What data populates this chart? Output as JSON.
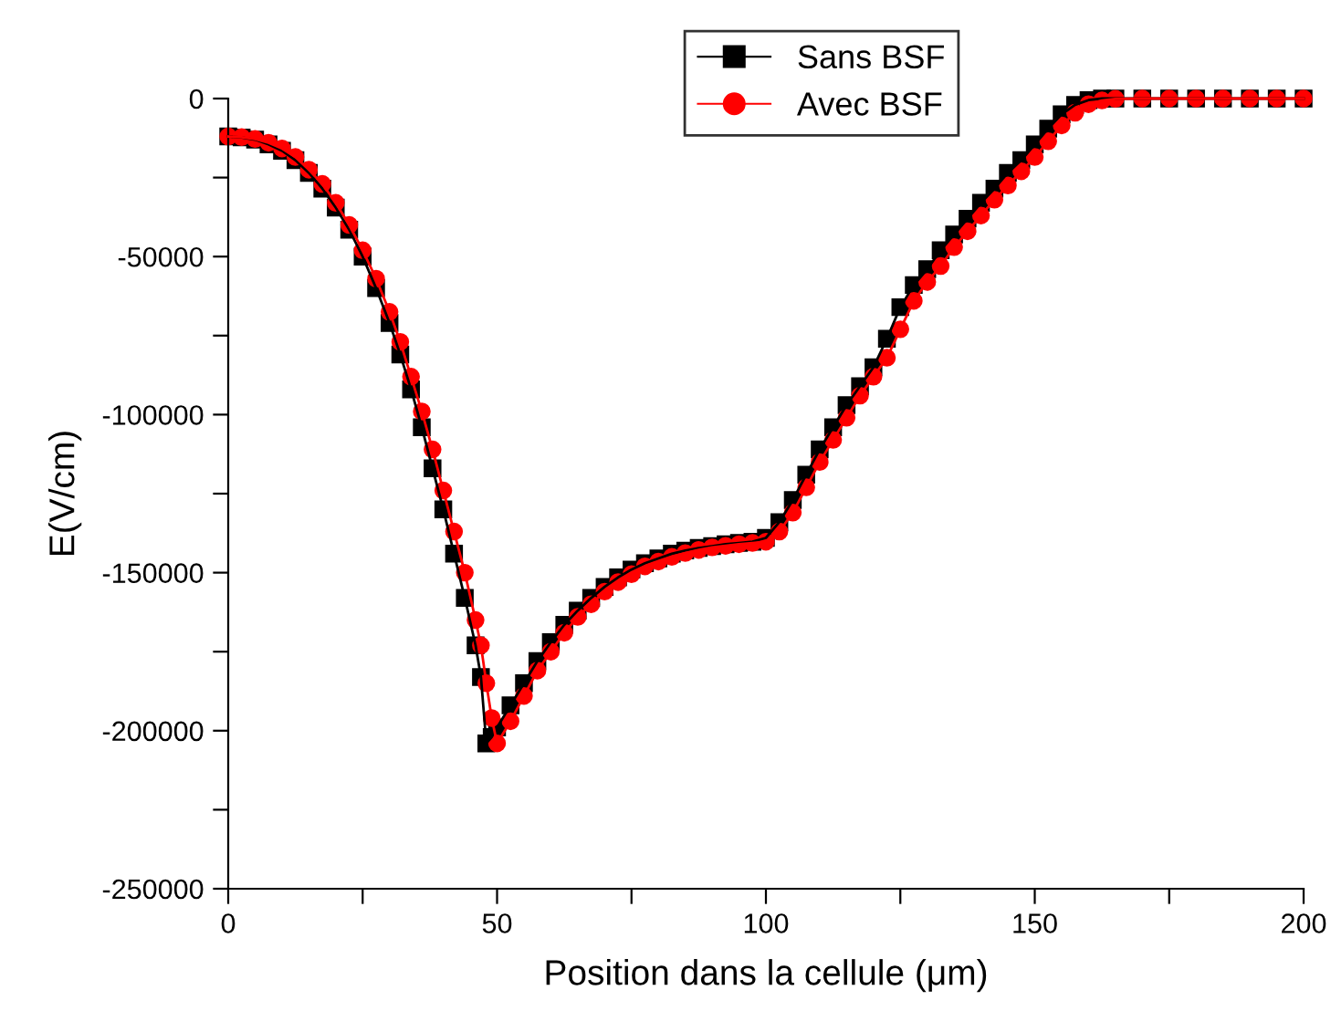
{
  "chart_data": {
    "type": "line",
    "xlabel": "Position dans la cellule (μm)",
    "ylabel": "E(V/cm)",
    "xlim": [
      0,
      200
    ],
    "ylim": [
      -250000,
      0
    ],
    "xticks": [
      0,
      {
        "value": 25,
        "label": null
      },
      50,
      {
        "value": 75,
        "label": null
      },
      100,
      {
        "value": 125,
        "label": null
      },
      150,
      {
        "value": 175,
        "label": null
      },
      200
    ],
    "yticks": [
      -250000,
      {
        "value": -225000,
        "label": null
      },
      -200000,
      {
        "value": -175000,
        "label": null
      },
      -150000,
      {
        "value": -125000,
        "label": null
      },
      -100000,
      {
        "value": -75000,
        "label": null
      },
      -50000,
      {
        "value": -25000,
        "label": null
      },
      0
    ],
    "grid": false,
    "legend": "top",
    "line_style": "solid",
    "series": [
      {
        "name": "Sans BSF",
        "color": "#000000",
        "marker": "square",
        "x": [
          0,
          2.5,
          5,
          7.5,
          10,
          12.5,
          15,
          17.5,
          20,
          22.5,
          25,
          27.5,
          30,
          32,
          34,
          36,
          38,
          40,
          42,
          44,
          46,
          47,
          48,
          49,
          50,
          52.5,
          55,
          57.5,
          60,
          62.5,
          65,
          67.5,
          70,
          72.5,
          75,
          77.5,
          80,
          82.5,
          85,
          87.5,
          90,
          92.5,
          95,
          97.5,
          100,
          102.5,
          105,
          107.5,
          110,
          112.5,
          115,
          117.5,
          120,
          122.5,
          125,
          127.5,
          130,
          132.5,
          135,
          137.5,
          140,
          142.5,
          145,
          147.5,
          150,
          152.5,
          155,
          157.5,
          160,
          162.5,
          165,
          170,
          175,
          180,
          185,
          190,
          195,
          200
        ],
        "values": [
          -12000,
          -12300,
          -13000,
          -14500,
          -16500,
          -19500,
          -23500,
          -28500,
          -34500,
          -41500,
          -50000,
          -60000,
          -71000,
          -81000,
          -92000,
          -104000,
          -117000,
          -130000,
          -144000,
          -158000,
          -173000,
          -183000,
          -204000,
          -202000,
          -199000,
          -192000,
          -185000,
          -178000,
          -172000,
          -166500,
          -162000,
          -158000,
          -154500,
          -151500,
          -149000,
          -147000,
          -145500,
          -144000,
          -143000,
          -142200,
          -141600,
          -141000,
          -140600,
          -140200,
          -139000,
          -134000,
          -127000,
          -119000,
          -111000,
          -104000,
          -97000,
          -91000,
          -85000,
          -76000,
          -66000,
          -59000,
          -54000,
          -48000,
          -43000,
          -38000,
          -33000,
          -28500,
          -23500,
          -19500,
          -14500,
          -9500,
          -5000,
          -2000,
          -500,
          0,
          0,
          0,
          0,
          0,
          0,
          0,
          0,
          0
        ]
      },
      {
        "name": "Avec BSF",
        "color": "#ff0000",
        "marker": "circle",
        "x": [
          0,
          2.5,
          5,
          7.5,
          10,
          12.5,
          15,
          17.5,
          20,
          22.5,
          25,
          27.5,
          30,
          32,
          34,
          36,
          38,
          40,
          42,
          44,
          46,
          47,
          48,
          49,
          50,
          52.5,
          55,
          57.5,
          60,
          62.5,
          65,
          67.5,
          70,
          72.5,
          75,
          77.5,
          80,
          82.5,
          85,
          87.5,
          90,
          92.5,
          95,
          97.5,
          100,
          102.5,
          105,
          107.5,
          110,
          112.5,
          115,
          117.5,
          120,
          122.5,
          125,
          127.5,
          130,
          132.5,
          135,
          137.5,
          140,
          142.5,
          145,
          147.5,
          150,
          152.5,
          155,
          157.5,
          160,
          162.5,
          165,
          170,
          175,
          180,
          185,
          190,
          195,
          200
        ],
        "values": [
          -12000,
          -12200,
          -12800,
          -14000,
          -15800,
          -18500,
          -22500,
          -27000,
          -33000,
          -40000,
          -48000,
          -57000,
          -67500,
          -77000,
          -88000,
          -99000,
          -111000,
          -124000,
          -137000,
          -150000,
          -165000,
          -173000,
          -185000,
          -196000,
          -204000,
          -197000,
          -189000,
          -181000,
          -175000,
          -169000,
          -164000,
          -160000,
          -156000,
          -153000,
          -150500,
          -148000,
          -146500,
          -145000,
          -143800,
          -142800,
          -142000,
          -141500,
          -141000,
          -140600,
          -140200,
          -137000,
          -131000,
          -123000,
          -115000,
          -108000,
          -101000,
          -94000,
          -88000,
          -82000,
          -73000,
          -64000,
          -58000,
          -53000,
          -47000,
          -42000,
          -37000,
          -32000,
          -27500,
          -23000,
          -18500,
          -13500,
          -8500,
          -4500,
          -1800,
          -600,
          -100,
          0,
          0,
          0,
          0,
          0,
          0,
          0
        ]
      }
    ]
  }
}
